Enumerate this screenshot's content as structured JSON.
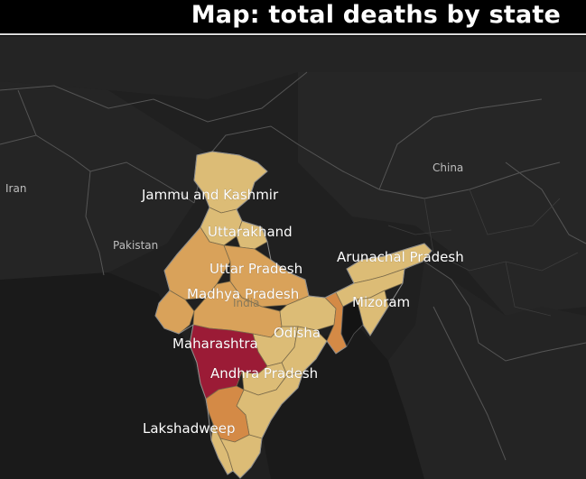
{
  "title": "Map: total deaths by state",
  "colors": {
    "background": "#1e1e1e",
    "land": "#262626",
    "water": "#191919",
    "borders": "#5a5a5a",
    "india_border": "#8a8a8a",
    "low": "#dcbc76",
    "mid": "#d9a25a",
    "high": "#d48a46",
    "highest": "#9b1b36"
  },
  "countries": [
    {
      "id": "iran",
      "label": "Iran"
    },
    {
      "id": "pakistan",
      "label": "Pakistan"
    },
    {
      "id": "india",
      "label": "India"
    },
    {
      "id": "china",
      "label": "China"
    }
  ],
  "states": [
    {
      "id": "jammu-and-kashmir",
      "label": "Jammu and Kashmir",
      "level": "low"
    },
    {
      "id": "uttarakhand",
      "label": "Uttarakhand",
      "level": "low"
    },
    {
      "id": "uttar-pradesh",
      "label": "Uttar Pradesh",
      "level": "mid"
    },
    {
      "id": "madhya-pradesh",
      "label": "Madhya Pradesh",
      "level": "mid"
    },
    {
      "id": "maharashtra",
      "label": "Maharashtra",
      "level": "highest"
    },
    {
      "id": "odisha",
      "label": "Odisha",
      "level": "low"
    },
    {
      "id": "andhra-pradesh",
      "label": "Andhra Pradesh",
      "level": "low"
    },
    {
      "id": "arunachal-pradesh",
      "label": "Arunachal Pradesh",
      "level": "low"
    },
    {
      "id": "mizoram",
      "label": "Mizoram",
      "level": "low"
    },
    {
      "id": "lakshadweep",
      "label": "Lakshadweep",
      "level": "low"
    }
  ]
}
